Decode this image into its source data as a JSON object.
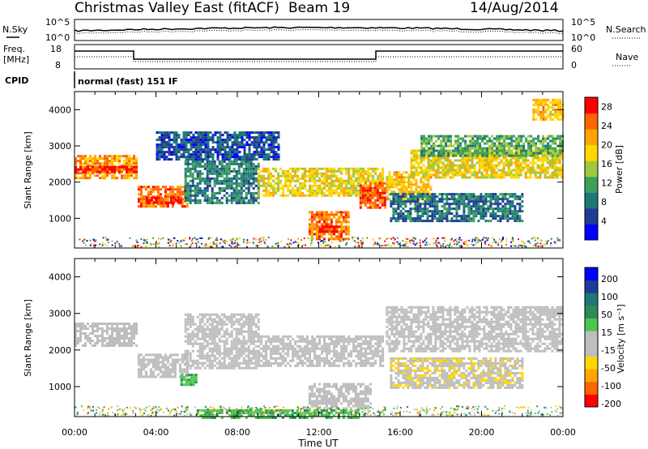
{
  "header": {
    "station": "Christmas Valley East (fitACF)",
    "beam": "Beam 19",
    "date": "14/Aug/2014"
  },
  "strips": {
    "nsky_label": "N.Sky",
    "nsearch_label": "N.Search",
    "noise_ticks": [
      "10^5",
      "10^0"
    ],
    "freq_label": "Freq.",
    "freq_unit": "[MHz]",
    "freq_ticks": [
      "18",
      "8"
    ],
    "nave_label": "Nave",
    "nave_ticks": [
      "60",
      "0"
    ],
    "cpid_label": "CPID",
    "cpid_text": "normal (fast) 151 IF"
  },
  "colors": {
    "background": "#ffffff",
    "ground_scatter": "#bebebe"
  },
  "power_scale": {
    "label": "Power [dB]",
    "ticks": [
      "28",
      "24",
      "20",
      "16",
      "12",
      "8",
      "4"
    ],
    "colors": [
      "#0000ff",
      "#1e3c96",
      "#1e7878",
      "#3ca05a",
      "#a0c83c",
      "#ffd700",
      "#ffa500",
      "#ff6400",
      "#ff0000"
    ]
  },
  "velocity_scale": {
    "label": "Velocity [m s⁻¹]",
    "ticks": [
      "200",
      "100",
      "50",
      "15",
      "-15",
      "-50",
      "-100",
      "-200"
    ],
    "colors": [
      "#ff0000",
      "#ff6400",
      "#ffa500",
      "#ffd700",
      "#bebebe",
      "#bebebe",
      "#4cc74c",
      "#2e8b57",
      "#1e7878",
      "#1e3c96",
      "#0000ff"
    ]
  },
  "chart_data": [
    {
      "type": "heatmap",
      "title": "",
      "xlabel": "Time UT",
      "ylabel": "Slant Range [km]",
      "xlim": [
        "00:00",
        "24:00"
      ],
      "ylim": [
        180,
        4500
      ],
      "x_ticks": [
        "00:00",
        "04:00",
        "08:00",
        "12:00",
        "16:00",
        "20:00",
        "00:00"
      ],
      "y_ticks": [
        1000,
        2000,
        3000,
        4000
      ],
      "colorbar": {
        "label": "Power [dB]",
        "range": [
          0,
          30
        ]
      },
      "bands": [
        {
          "t0": 0.0,
          "t1": 3.0,
          "r0": 2100,
          "r1": 2750,
          "dB": 22
        },
        {
          "t0": 0.0,
          "t1": 3.0,
          "r0": 2250,
          "r1": 2450,
          "dB": 28
        },
        {
          "t0": 3.1,
          "t1": 5.6,
          "r0": 1300,
          "r1": 1900,
          "dB": 24
        },
        {
          "t0": 3.5,
          "t1": 5.2,
          "r0": 1400,
          "r1": 1600,
          "dB": 28
        },
        {
          "t0": 5.4,
          "t1": 9.0,
          "r0": 1400,
          "r1": 2600,
          "dB": 9
        },
        {
          "t0": 4.0,
          "t1": 10.0,
          "r0": 2600,
          "r1": 3400,
          "dB": 6
        },
        {
          "t0": 9.0,
          "t1": 15.2,
          "r0": 1600,
          "r1": 2400,
          "dB": 18
        },
        {
          "t0": 11.5,
          "t1": 13.5,
          "r0": 400,
          "r1": 1200,
          "dB": 24
        },
        {
          "t0": 12.0,
          "t1": 13.0,
          "r0": 600,
          "r1": 800,
          "dB": 28
        },
        {
          "t0": 14.0,
          "t1": 15.2,
          "r0": 1300,
          "r1": 2000,
          "dB": 26
        },
        {
          "t0": 15.3,
          "t1": 17.5,
          "r0": 1500,
          "r1": 2300,
          "dB": 20
        },
        {
          "t0": 16.5,
          "t1": 24.0,
          "r0": 2100,
          "r1": 2900,
          "dB": 18
        },
        {
          "t0": 17.0,
          "t1": 24.0,
          "r0": 2700,
          "r1": 3300,
          "dB": 12
        },
        {
          "t0": 15.5,
          "t1": 22.0,
          "r0": 900,
          "r1": 1700,
          "dB": 8
        },
        {
          "t0": 22.5,
          "t1": 24.0,
          "r0": 3700,
          "r1": 4300,
          "dB": 20
        }
      ]
    },
    {
      "type": "heatmap",
      "title": "",
      "xlabel": "Time UT",
      "ylabel": "Slant Range [km]",
      "xlim": [
        "00:00",
        "24:00"
      ],
      "ylim": [
        180,
        4500
      ],
      "x_ticks": [
        "00:00",
        "04:00",
        "08:00",
        "12:00",
        "16:00",
        "20:00",
        "00:00"
      ],
      "y_ticks": [
        1000,
        2000,
        3000,
        4000
      ],
      "colorbar": {
        "label": "Velocity [m s⁻¹]",
        "range": [
          -250,
          250
        ]
      },
      "bands": [
        {
          "t0": 0.0,
          "t1": 3.0,
          "r0": 2100,
          "r1": 2750,
          "v": 0
        },
        {
          "t0": 3.1,
          "t1": 5.6,
          "r0": 1300,
          "r1": 1900,
          "v": 0
        },
        {
          "t0": 5.2,
          "t1": 6.0,
          "r0": 1050,
          "r1": 1350,
          "v": 60
        },
        {
          "t0": 5.4,
          "t1": 9.0,
          "r0": 1500,
          "r1": 3000,
          "v": -30
        },
        {
          "t0": 9.0,
          "t1": 15.2,
          "r0": 1600,
          "r1": 2400,
          "v": 0
        },
        {
          "t0": 11.5,
          "t1": 14.5,
          "r0": 400,
          "r1": 1100,
          "v": 0
        },
        {
          "t0": 6.0,
          "t1": 14.0,
          "r0": 180,
          "r1": 380,
          "v": 60
        },
        {
          "t0": 15.3,
          "t1": 24.0,
          "r0": 2000,
          "r1": 3200,
          "v": 0
        },
        {
          "t0": 15.5,
          "t1": 22.0,
          "r0": 1000,
          "r1": 1800,
          "v": -60
        }
      ]
    }
  ]
}
